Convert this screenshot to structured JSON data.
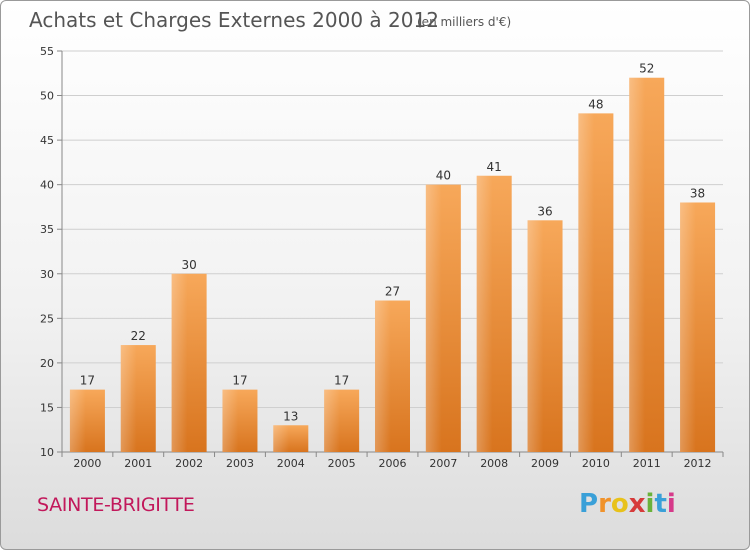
{
  "chart_data": {
    "type": "bar",
    "title": "Achats et Charges Externes 2000 à 2012",
    "subtitle": "(en milliers d'€)",
    "categories": [
      "2000",
      "2001",
      "2002",
      "2003",
      "2004",
      "2005",
      "2006",
      "2007",
      "2008",
      "2009",
      "2010",
      "2011",
      "2012"
    ],
    "values": [
      17,
      22,
      30,
      17,
      13,
      17,
      27,
      40,
      41,
      36,
      48,
      52,
      38
    ],
    "ylim": [
      10,
      55
    ],
    "yticks": [
      10,
      15,
      20,
      25,
      30,
      35,
      40,
      45,
      50,
      55
    ],
    "grid": true,
    "bar_color": "#f0923a"
  },
  "commune": "SAINTE-BRIGITTE",
  "brand": {
    "letters": [
      "P",
      "r",
      "o",
      "x",
      "i",
      "t",
      "i"
    ],
    "colors": [
      "#3aa0d8",
      "#f0922a",
      "#e8c21a",
      "#d63a3a",
      "#6ab23a",
      "#3aa0d8",
      "#d63a8a"
    ]
  }
}
